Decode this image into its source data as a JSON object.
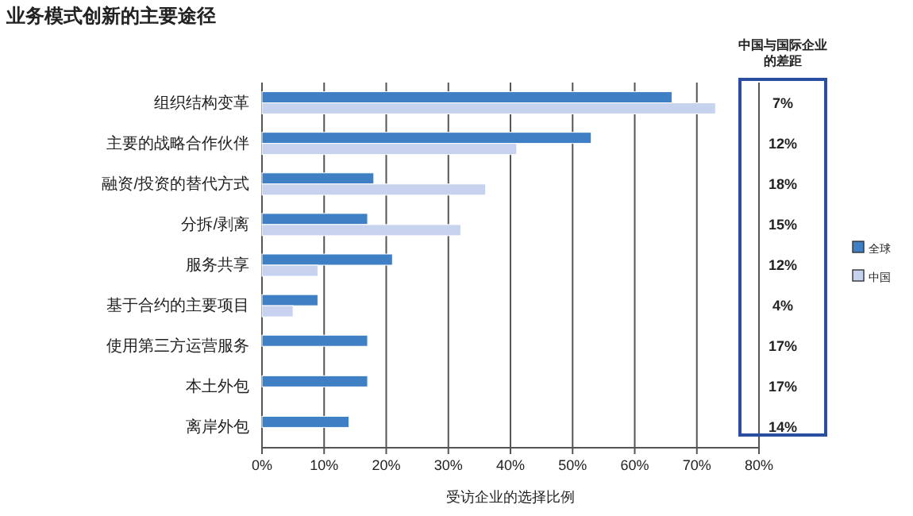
{
  "chart_data": {
    "type": "bar",
    "orientation": "horizontal",
    "title": "业务模式创新的主要途径",
    "xlabel": "受访企业的选择比例",
    "categories": [
      "组织结构变革",
      "主要的战略合作伙伴",
      "融资/投资的替代方式",
      "分拆/剥离",
      "服务共享",
      "基于合约的主要项目",
      "使用第三方运营服务",
      "本土外包",
      "离岸外包"
    ],
    "series": [
      {
        "name": "全球",
        "color": "#3f7fc4",
        "values": [
          66,
          53,
          18,
          17,
          21,
          9,
          17,
          17,
          14
        ]
      },
      {
        "name": "中国",
        "color": "#c7d3ee",
        "values": [
          73,
          41,
          36,
          32,
          9,
          5,
          null,
          null,
          null
        ]
      }
    ],
    "xlim": [
      0,
      80
    ],
    "xticks": [
      {
        "value": 0,
        "label": "0%"
      },
      {
        "value": 10,
        "label": "10%"
      },
      {
        "value": 20,
        "label": "20%"
      },
      {
        "value": 30,
        "label": "30%"
      },
      {
        "value": 40,
        "label": "40%"
      },
      {
        "value": 50,
        "label": "50%"
      },
      {
        "value": 60,
        "label": "60%"
      },
      {
        "value": 70,
        "label": "70%"
      },
      {
        "value": 80,
        "label": "80%"
      }
    ],
    "grid": "x",
    "legend": "right",
    "annotations": [
      "中国与国际企业的差距",
      "7%",
      "12%",
      "18%",
      "15%",
      "12%",
      "4%",
      "17%",
      "17%",
      "14%"
    ]
  }
}
